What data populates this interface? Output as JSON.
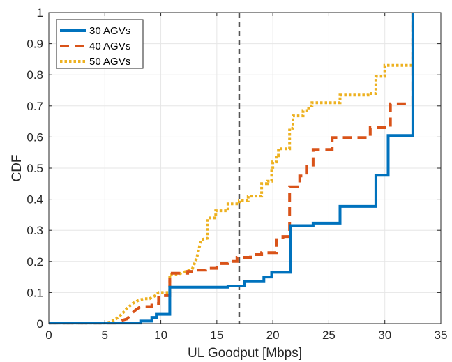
{
  "chart_data": {
    "type": "line",
    "xlabel": "UL Goodput [Mbps]",
    "ylabel": "CDF",
    "xlim": [
      0,
      35
    ],
    "ylim": [
      0,
      1
    ],
    "xticks": [
      "0",
      "5",
      "10",
      "15",
      "20",
      "25",
      "30",
      "35"
    ],
    "yticks": [
      "0",
      "0.1",
      "0.2",
      "0.3",
      "0.4",
      "0.5",
      "0.6",
      "0.7",
      "0.8",
      "0.9",
      "1"
    ],
    "grid": true,
    "legend_position": "top-left",
    "reference_line": {
      "x": 17,
      "style": "dashed",
      "color": "#555555"
    },
    "series": [
      {
        "name": "30 AGVs",
        "color": "#0072BD",
        "style": "solid",
        "points": [
          [
            0,
            0.002
          ],
          [
            6,
            0.002
          ],
          [
            8.2,
            0.002
          ],
          [
            8.2,
            0.008
          ],
          [
            9.2,
            0.008
          ],
          [
            9.2,
            0.02
          ],
          [
            9.6,
            0.02
          ],
          [
            9.6,
            0.03
          ],
          [
            10.8,
            0.03
          ],
          [
            10.8,
            0.117
          ],
          [
            16,
            0.117
          ],
          [
            16,
            0.121
          ],
          [
            17.5,
            0.121
          ],
          [
            17.5,
            0.135
          ],
          [
            19.2,
            0.135
          ],
          [
            19.2,
            0.15
          ],
          [
            19.9,
            0.15
          ],
          [
            19.9,
            0.165
          ],
          [
            21.6,
            0.165
          ],
          [
            21.6,
            0.315
          ],
          [
            23.6,
            0.315
          ],
          [
            23.6,
            0.323
          ],
          [
            26,
            0.323
          ],
          [
            26,
            0.377
          ],
          [
            29.2,
            0.377
          ],
          [
            29.2,
            0.477
          ],
          [
            30.3,
            0.477
          ],
          [
            30.3,
            0.605
          ],
          [
            32.5,
            0.605
          ],
          [
            32.5,
            1.0
          ]
        ]
      },
      {
        "name": "40 AGVs",
        "color": "#D95319",
        "style": "dashed",
        "points": [
          [
            0,
            0.002
          ],
          [
            6,
            0.002
          ],
          [
            6.5,
            0.01
          ],
          [
            7,
            0.015
          ],
          [
            7.3,
            0.03
          ],
          [
            7.8,
            0.045
          ],
          [
            8.2,
            0.055
          ],
          [
            9.2,
            0.055
          ],
          [
            9.2,
            0.065
          ],
          [
            9.8,
            0.065
          ],
          [
            9.8,
            0.09
          ],
          [
            10.8,
            0.09
          ],
          [
            10.8,
            0.162
          ],
          [
            12.4,
            0.162
          ],
          [
            12.4,
            0.168
          ],
          [
            13,
            0.168
          ],
          [
            13,
            0.172
          ],
          [
            14,
            0.172
          ],
          [
            14,
            0.178
          ],
          [
            15,
            0.178
          ],
          [
            15,
            0.193
          ],
          [
            16,
            0.193
          ],
          [
            16,
            0.2
          ],
          [
            16.8,
            0.2
          ],
          [
            16.8,
            0.213
          ],
          [
            18,
            0.213
          ],
          [
            18,
            0.222
          ],
          [
            19,
            0.222
          ],
          [
            19,
            0.228
          ],
          [
            20.3,
            0.228
          ],
          [
            20.3,
            0.27
          ],
          [
            20.9,
            0.27
          ],
          [
            20.9,
            0.28
          ],
          [
            21.5,
            0.28
          ],
          [
            21.5,
            0.44
          ],
          [
            22.4,
            0.44
          ],
          [
            22.4,
            0.475
          ],
          [
            23,
            0.475
          ],
          [
            23,
            0.505
          ],
          [
            23.6,
            0.505
          ],
          [
            23.6,
            0.56
          ],
          [
            25.3,
            0.56
          ],
          [
            25.3,
            0.598
          ],
          [
            28.7,
            0.598
          ],
          [
            28.7,
            0.63
          ],
          [
            30.5,
            0.63
          ],
          [
            30.5,
            0.707
          ],
          [
            32.5,
            0.707
          ],
          [
            32.5,
            1.0
          ]
        ]
      },
      {
        "name": "50 AGVs",
        "color": "#EDB120",
        "style": "dotted",
        "points": [
          [
            0,
            0.002
          ],
          [
            5,
            0.002
          ],
          [
            5.5,
            0.005
          ],
          [
            6,
            0.015
          ],
          [
            6.5,
            0.03
          ],
          [
            7,
            0.05
          ],
          [
            7.5,
            0.065
          ],
          [
            8,
            0.075
          ],
          [
            8.5,
            0.08
          ],
          [
            9,
            0.08
          ],
          [
            9.5,
            0.09
          ],
          [
            9.8,
            0.1
          ],
          [
            10.8,
            0.1
          ],
          [
            10.8,
            0.158
          ],
          [
            11.5,
            0.158
          ],
          [
            12,
            0.165
          ],
          [
            12.8,
            0.175
          ],
          [
            13.2,
            0.21
          ],
          [
            13.6,
            0.27
          ],
          [
            14.2,
            0.275
          ],
          [
            14.2,
            0.34
          ],
          [
            14.9,
            0.34
          ],
          [
            14.9,
            0.363
          ],
          [
            16,
            0.363
          ],
          [
            16,
            0.385
          ],
          [
            17,
            0.385
          ],
          [
            17,
            0.395
          ],
          [
            17.8,
            0.395
          ],
          [
            17.8,
            0.41
          ],
          [
            19,
            0.41
          ],
          [
            19,
            0.45
          ],
          [
            19.5,
            0.45
          ],
          [
            19.5,
            0.458
          ],
          [
            19.9,
            0.458
          ],
          [
            19.9,
            0.495
          ],
          [
            20,
            0.495
          ],
          [
            20,
            0.52
          ],
          [
            20.3,
            0.52
          ],
          [
            20.3,
            0.54
          ],
          [
            20.5,
            0.54
          ],
          [
            20.5,
            0.562
          ],
          [
            21.5,
            0.562
          ],
          [
            21.5,
            0.628
          ],
          [
            21.8,
            0.628
          ],
          [
            21.8,
            0.668
          ],
          [
            22.7,
            0.668
          ],
          [
            22.7,
            0.685
          ],
          [
            23.2,
            0.685
          ],
          [
            23.2,
            0.7
          ],
          [
            23.5,
            0.7
          ],
          [
            23.5,
            0.71
          ],
          [
            26,
            0.71
          ],
          [
            26,
            0.735
          ],
          [
            28.5,
            0.735
          ],
          [
            28.5,
            0.74
          ],
          [
            29.2,
            0.74
          ],
          [
            29.2,
            0.795
          ],
          [
            30,
            0.795
          ],
          [
            30,
            0.83
          ],
          [
            32.5,
            0.83
          ],
          [
            32.5,
            1.0
          ]
        ]
      }
    ]
  }
}
